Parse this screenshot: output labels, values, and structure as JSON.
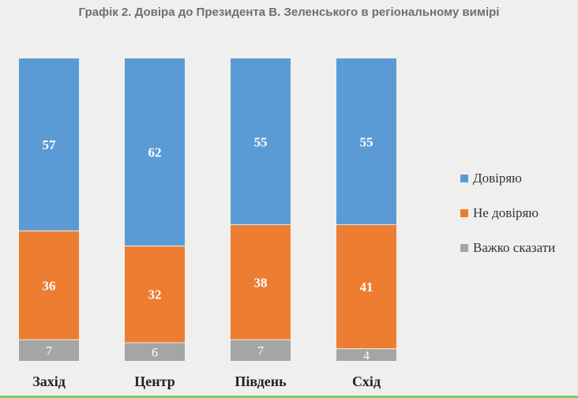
{
  "chart_data": {
    "type": "bar",
    "stacked": true,
    "title": "Графік 2. Довіра до Президента В. Зеленського в регіональному вимірі",
    "categories": [
      "Захід",
      "Центр",
      "Південь",
      "Схід"
    ],
    "series": [
      {
        "name": "Довіряю",
        "color": "#5b9bd5",
        "values": [
          57,
          62,
          55,
          55
        ]
      },
      {
        "name": "Не довіряю",
        "color": "#ed7d31",
        "values": [
          36,
          32,
          38,
          41
        ]
      },
      {
        "name": "Важко сказати",
        "color": "#a5a5a5",
        "values": [
          7,
          6,
          7,
          4
        ]
      }
    ],
    "ylim": [
      0,
      100
    ],
    "legend_position": "right",
    "grid": false
  }
}
